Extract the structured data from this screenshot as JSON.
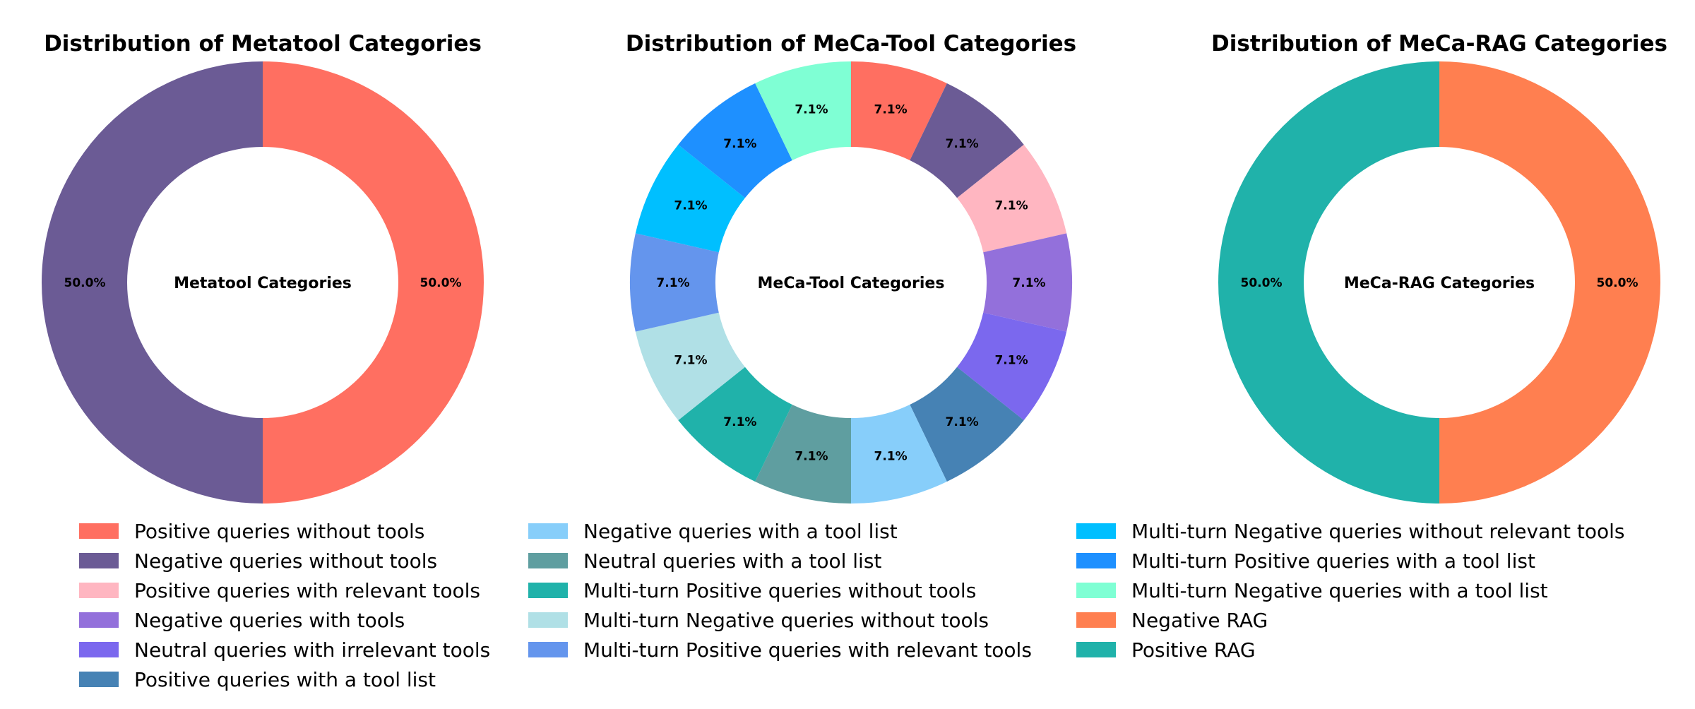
{
  "chart_data": [
    {
      "type": "pie",
      "title": "Distribution of Metatool Categories",
      "center_label": "Metatool Categories",
      "slices": [
        {
          "name": "Positive queries without tools",
          "value": 50.0,
          "label": "50.0%",
          "color": "#ff6f61"
        },
        {
          "name": "Negative queries without tools",
          "value": 50.0,
          "label": "50.0%",
          "color": "#6b5b95"
        }
      ]
    },
    {
      "type": "pie",
      "title": "Distribution of MeCa-Tool Categories",
      "center_label": "MeCa-Tool Categories",
      "slices": [
        {
          "name": "Positive queries without tools",
          "value": 7.1,
          "label": "7.1%",
          "color": "#ff6f61"
        },
        {
          "name": "Negative queries without tools",
          "value": 7.1,
          "label": "7.1%",
          "color": "#6b5b95"
        },
        {
          "name": "Positive queries with relevant tools",
          "value": 7.1,
          "label": "7.1%",
          "color": "#ffb6c1"
        },
        {
          "name": "Negative queries with tools",
          "value": 7.1,
          "label": "7.1%",
          "color": "#9370db"
        },
        {
          "name": "Neutral queries with irrelevant tools",
          "value": 7.1,
          "label": "7.1%",
          "color": "#7b68ee"
        },
        {
          "name": "Positive queries with a tool list",
          "value": 7.1,
          "label": "7.1%",
          "color": "#4682b4"
        },
        {
          "name": "Negative queries with a tool list",
          "value": 7.1,
          "label": "7.1%",
          "color": "#87cefa"
        },
        {
          "name": "Neutral queries with a tool list",
          "value": 7.1,
          "label": "7.1%",
          "color": "#5f9ea0"
        },
        {
          "name": "Multi-turn Positive queries without tools",
          "value": 7.1,
          "label": "7.1%",
          "color": "#20b2aa"
        },
        {
          "name": "Multi-turn Negative queries without tools",
          "value": 7.1,
          "label": "7.1%",
          "color": "#b0e0e6"
        },
        {
          "name": "Multi-turn Positive queries with relevant tools",
          "value": 7.1,
          "label": "7.1%",
          "color": "#6495ed"
        },
        {
          "name": "Multi-turn Negative queries without relevant tools",
          "value": 7.1,
          "label": "7.1%",
          "color": "#00bfff"
        },
        {
          "name": "Multi-turn Positive queries with a tool list",
          "value": 7.1,
          "label": "7.1%",
          "color": "#1e90ff"
        },
        {
          "name": "Multi-turn Negative queries with a tool list",
          "value": 7.1,
          "label": "7.1%",
          "color": "#7fffd4"
        }
      ]
    },
    {
      "type": "pie",
      "title": "Distribution of MeCa-RAG Categories",
      "center_label": "MeCa-RAG Categories",
      "slices": [
        {
          "name": "Negative RAG",
          "value": 50.0,
          "label": "50.0%",
          "color": "#ff7f50"
        },
        {
          "name": "Positive RAG",
          "value": 50.0,
          "label": "50.0%",
          "color": "#20b2aa"
        }
      ]
    }
  ],
  "legend": {
    "placement": "bottom",
    "columns": [
      [
        {
          "label": "Positive queries without tools",
          "color": "#ff6f61"
        },
        {
          "label": "Negative queries without tools",
          "color": "#6b5b95"
        },
        {
          "label": "Positive queries with relevant tools",
          "color": "#ffb6c1"
        },
        {
          "label": "Negative queries with tools",
          "color": "#9370db"
        },
        {
          "label": "Neutral queries with irrelevant tools",
          "color": "#7b68ee"
        },
        {
          "label": "Positive queries with a tool list",
          "color": "#4682b4"
        }
      ],
      [
        {
          "label": "Negative queries with a tool list",
          "color": "#87cefa"
        },
        {
          "label": "Neutral queries with a tool list",
          "color": "#5f9ea0"
        },
        {
          "label": "Multi-turn Positive queries without tools",
          "color": "#20b2aa"
        },
        {
          "label": "Multi-turn Negative queries without tools",
          "color": "#b0e0e6"
        },
        {
          "label": "Multi-turn Positive queries with relevant tools",
          "color": "#6495ed"
        }
      ],
      [
        {
          "label": "Multi-turn Negative queries without relevant tools",
          "color": "#00bfff"
        },
        {
          "label": "Multi-turn Positive queries with a tool list",
          "color": "#1e90ff"
        },
        {
          "label": "Multi-turn Negative queries with a tool list",
          "color": "#7fffd4"
        },
        {
          "label": "Negative RAG",
          "color": "#ff7f50"
        },
        {
          "label": "Positive RAG",
          "color": "#20b2aa"
        }
      ]
    ]
  }
}
